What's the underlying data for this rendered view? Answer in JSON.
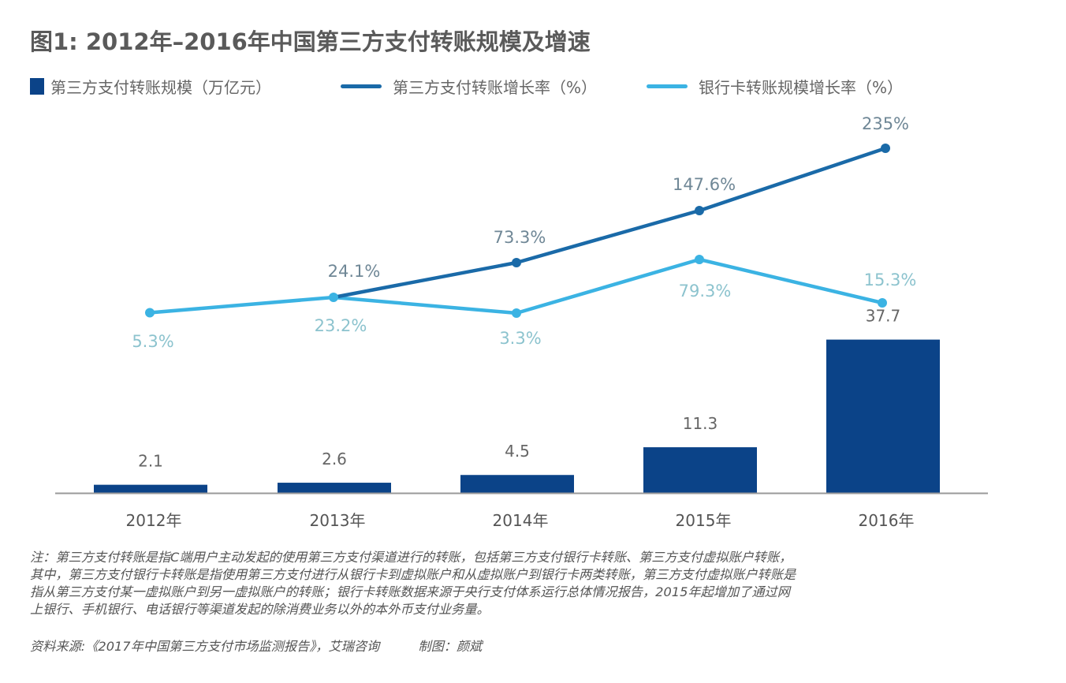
{
  "title": "图1: 2012年–2016年中国第三方支付转账规模及增速",
  "colors": {
    "bar": "#0B4388",
    "line_third_party": "#1A6AA8",
    "line_bank_card": "#3BB3E3",
    "label_third_party": "#6F8796",
    "label_bank_card": "#8CC3CE",
    "label_bar": "#666666",
    "axis": "#9a9a9a",
    "tick_text": "#555555"
  },
  "chart_data": {
    "type": "bar+line",
    "title": "图1: 2012年–2016年中国第三方支付转账规模及增速",
    "categories": [
      "2012年",
      "2013年",
      "2014年",
      "2015年",
      "2016年"
    ],
    "legend_position": "top-left",
    "grid": false,
    "series": [
      {
        "name": "第三方支付转账规模（万亿元）",
        "type": "bar",
        "axis": "left",
        "values": [
          2.1,
          2.6,
          4.5,
          11.3,
          37.7
        ],
        "labels": [
          "2.1",
          "2.6",
          "4.5",
          "11.3",
          "37.7"
        ]
      },
      {
        "name": "第三方支付转账增长率（%）",
        "type": "line",
        "axis": "right",
        "values": [
          null,
          24.1,
          73.3,
          147.6,
          235
        ],
        "labels": [
          "",
          "24.1%",
          "73.3%",
          "147.6%",
          "235%"
        ]
      },
      {
        "name": "银行卡转账规模增长率（%）",
        "type": "line",
        "axis": "right",
        "values": [
          5.3,
          23.2,
          3.3,
          79.3,
          15.3
        ],
        "labels": [
          "5.3%",
          "23.2%",
          "3.3%",
          "79.3%",
          "15.3%"
        ]
      }
    ],
    "xlabel": "",
    "ylabel": "",
    "ylim_bar": [
      0,
      40
    ]
  },
  "legend": [
    {
      "label": "第三方支付转账规模（万亿元）",
      "marker": "square"
    },
    {
      "label": "第三方支付转账增长率（%）",
      "marker": "line"
    },
    {
      "label": "银行卡转账规模增长率（%）",
      "marker": "line"
    }
  ],
  "notes": [
    "注：第三方支付转账是指C端用户主动发起的使用第三方支付渠道进行的转账，包括第三方支付银行卡转账、第三方支付虚拟账户转账，",
    "其中，第三方支付银行卡转账是指使用第三方支付进行从银行卡到虚拟账户和从虚拟账户到银行卡两类转账，第三方支付虚拟账户转账是",
    "指从第三方支付某一虚拟账户到另一虚拟账户的转账；银行卡转账数据来源于央行支付体系运行总体情况报告，2015年起增加了通过网",
    "上银行、手机银行、电话银行等渠道发起的除消费业务以外的本外币支付业务量。"
  ],
  "source": "资料来源:《2017年中国第三方支付市场监测报告》，艾瑞咨询",
  "credit": "制图：颜斌"
}
